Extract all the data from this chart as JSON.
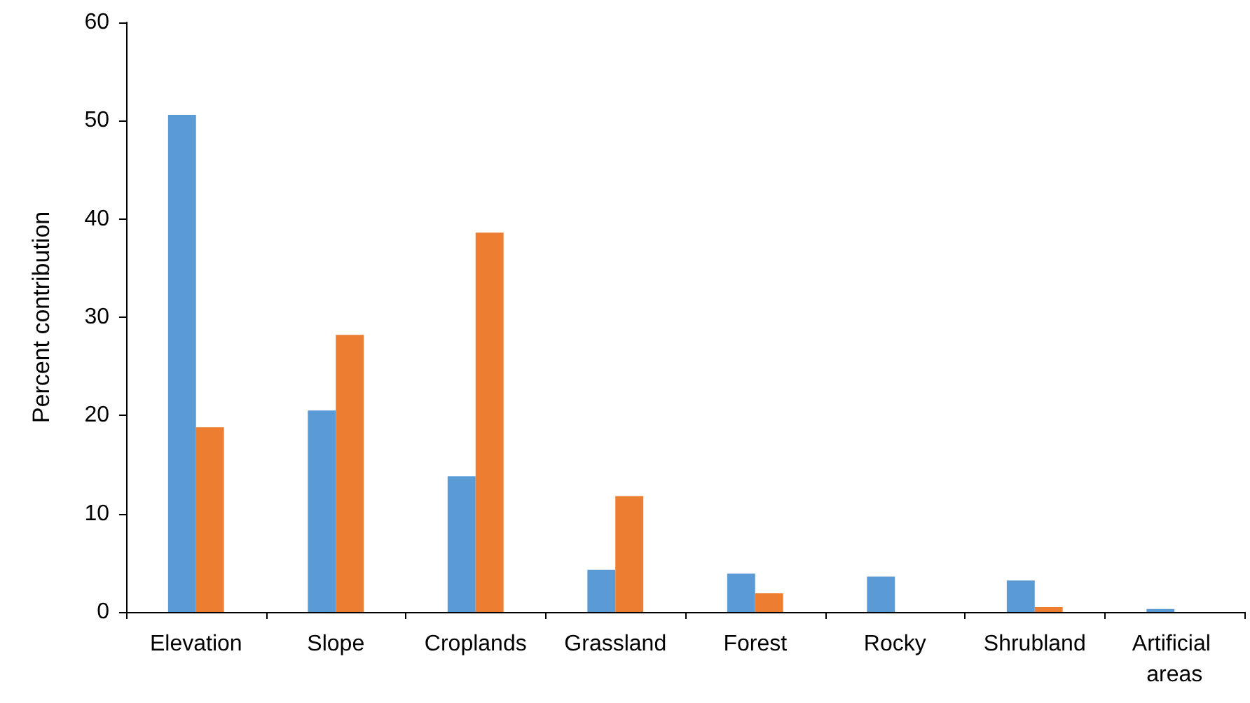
{
  "chart_data": {
    "type": "bar",
    "ylabel": "Percent contribution",
    "categories": [
      "Elevation",
      "Slope",
      "Croplands",
      "Grassland",
      "Forest",
      "Rocky",
      "Shrubland",
      "Artificial areas"
    ],
    "series": [
      {
        "color": "#5b9bd5",
        "values": [
          50.6,
          20.5,
          13.8,
          4.3,
          3.9,
          3.6,
          3.2,
          0.3
        ]
      },
      {
        "color": "#ed7d31",
        "values": [
          18.8,
          28.2,
          38.6,
          11.8,
          1.9,
          0,
          0.5,
          0
        ]
      }
    ],
    "ylim": [
      0,
      60
    ],
    "yticks": [
      0,
      10,
      20,
      30,
      40,
      50,
      60
    ],
    "grid": false
  }
}
